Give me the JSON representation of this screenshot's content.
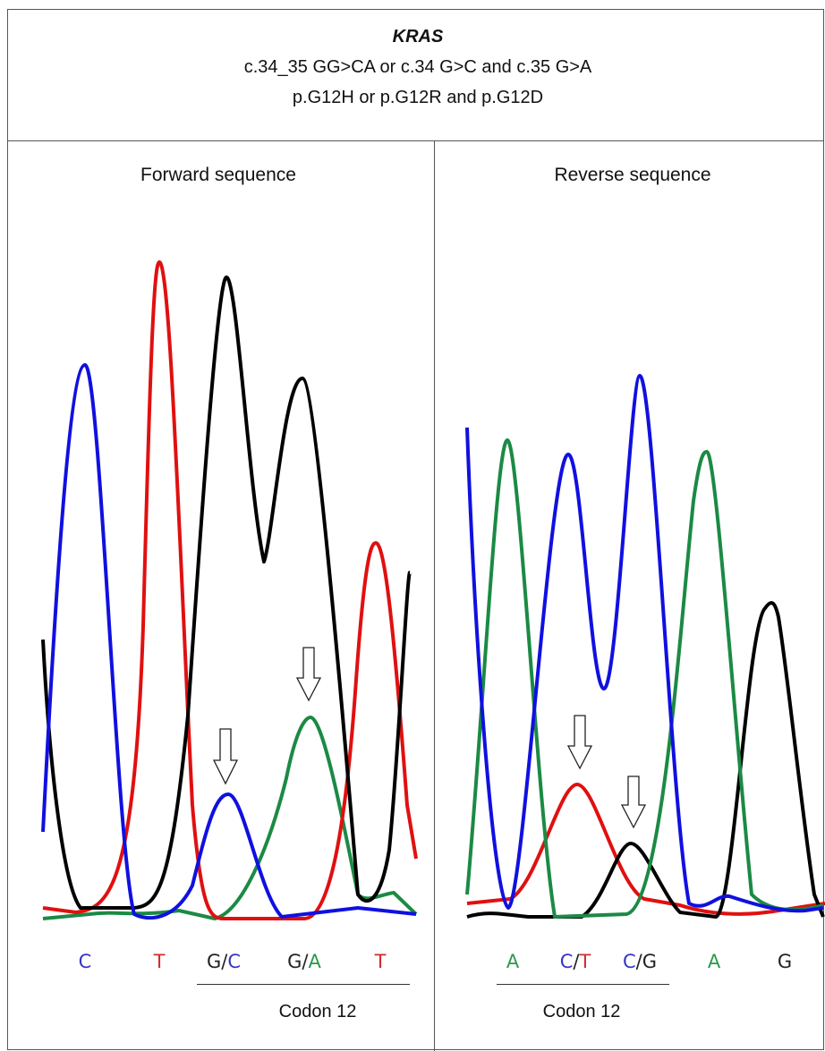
{
  "header": {
    "gene": "KRAS",
    "cdna": "c.34_35 GG>CA or c.34 G>C and c.35 G>A",
    "protein": "p.G12H or p.G12R and p.G12D"
  },
  "panels": [
    {
      "title": "Forward sequence",
      "bases": [
        [
          "C"
        ],
        [
          "T"
        ],
        [
          "G",
          "/",
          "C"
        ],
        [
          "G",
          "/",
          "A"
        ],
        [
          "T"
        ]
      ],
      "codon_label": "Codon 12"
    },
    {
      "title": "Reverse sequence",
      "bases": [
        [
          "A"
        ],
        [
          "C",
          "/",
          "T"
        ],
        [
          "C",
          "/",
          "G"
        ],
        [
          "A"
        ],
        [
          "G"
        ]
      ],
      "codon_label": "Codon 12"
    }
  ]
}
